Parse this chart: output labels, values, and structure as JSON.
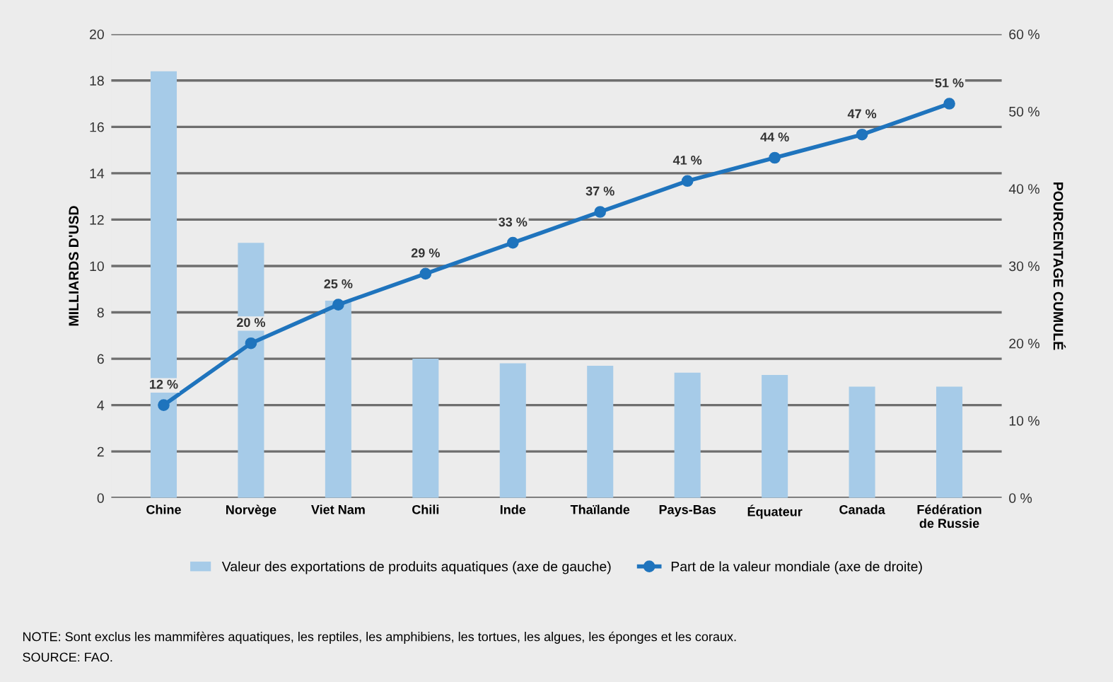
{
  "chart_data": {
    "type": "bar",
    "ylabel": "MILLIARDS D'USD",
    "y2label": "POURCENTAGE CUMULÉ",
    "categories": [
      "Chine",
      "Norvège",
      "Viet Nam",
      "Chili",
      "Inde",
      "Thaïlande",
      "Pays-Bas",
      "Équateur",
      "Canada",
      "Fédération\nde Russie"
    ],
    "series": [
      {
        "name": "Valeur des exportations de produits aquatiques (axe de gauche)",
        "color": "#a6cbe8",
        "values": [
          18.4,
          11.0,
          8.5,
          6.0,
          5.8,
          5.7,
          5.4,
          5.3,
          4.8,
          4.8
        ]
      },
      {
        "name": "Part de la valeur mondiale (axe de droite)",
        "type": "line",
        "axis": "y2",
        "color": "#1f74bd",
        "marker": "circle",
        "values": [
          12,
          20,
          25,
          29,
          33,
          37,
          41,
          44,
          47,
          51
        ],
        "value_labels": [
          "12 %",
          "20 %",
          "25 %",
          "29 %",
          "33 %",
          "37 %",
          "41 %",
          "44 %",
          "47 %",
          "51 %"
        ]
      }
    ],
    "ylim": [
      0,
      20
    ],
    "yticks": [
      0,
      2,
      4,
      6,
      8,
      10,
      12,
      14,
      16,
      18,
      20
    ],
    "y2lim": [
      0,
      60
    ],
    "y2ticks": [
      {
        "value": 0,
        "label": "0 %"
      },
      {
        "value": 10,
        "label": "10 %"
      },
      {
        "value": 20,
        "label": "20 %"
      },
      {
        "value": 30,
        "label": "30 %"
      },
      {
        "value": 40,
        "label": "40 %"
      },
      {
        "value": 50,
        "label": "50 %"
      },
      {
        "value": 60,
        "label": "60 %"
      }
    ],
    "grid": "y",
    "legend": "bottom",
    "annotations": [
      "NOTE: Sont exclus les mammifères aquatiques, les reptiles, les amphibiens, les tortues, les algues, les éponges et les coraux.",
      "SOURCE: FAO."
    ]
  }
}
